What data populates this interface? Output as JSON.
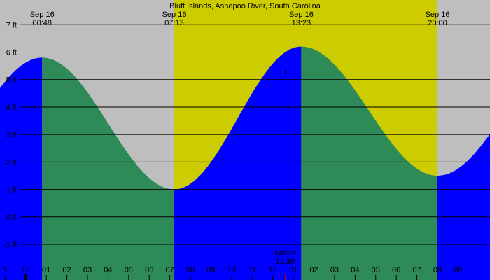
{
  "chart_data": {
    "type": "area",
    "title": "Bluff Islands, Ashepoo River, South Carolina",
    "xlabel": "",
    "ylabel": "",
    "y_unit": "ft",
    "ylim": [
      -2.3,
      7.9
    ],
    "y_ticks": [
      {
        "value": -1,
        "label": "-1 ft"
      },
      {
        "value": 0,
        "label": "0 ft"
      },
      {
        "value": 1,
        "label": "1 ft"
      },
      {
        "value": 2,
        "label": "2 ft"
      },
      {
        "value": 3,
        "label": "3 ft"
      },
      {
        "value": 4,
        "label": "4 ft"
      },
      {
        "value": 5,
        "label": "5 ft"
      },
      {
        "value": 6,
        "label": "6 ft"
      },
      {
        "value": 7,
        "label": "7 ft"
      }
    ],
    "x_unit": "hour of day (Sep 16)",
    "xlim": [
      -1.25,
      22.55
    ],
    "x_ticks": [
      {
        "hour": -1,
        "label": "1"
      },
      {
        "hour": 0,
        "label": "12"
      },
      {
        "hour": 1,
        "label": "01"
      },
      {
        "hour": 2,
        "label": "02"
      },
      {
        "hour": 3,
        "label": "03"
      },
      {
        "hour": 4,
        "label": "04"
      },
      {
        "hour": 5,
        "label": "05"
      },
      {
        "hour": 6,
        "label": "06"
      },
      {
        "hour": 7,
        "label": "07"
      },
      {
        "hour": 8,
        "label": "08"
      },
      {
        "hour": 9,
        "label": "09"
      },
      {
        "hour": 10,
        "label": "10"
      },
      {
        "hour": 11,
        "label": "11"
      },
      {
        "hour": 12,
        "label": "12"
      },
      {
        "hour": 13,
        "label": "01"
      },
      {
        "hour": 14,
        "label": "02"
      },
      {
        "hour": 15,
        "label": "03"
      },
      {
        "hour": 16,
        "label": "04"
      },
      {
        "hour": 17,
        "label": "05"
      },
      {
        "hour": 18,
        "label": "06"
      },
      {
        "hour": 19,
        "label": "07"
      },
      {
        "hour": 20,
        "label": "08"
      },
      {
        "hour": 21,
        "label": "09"
      }
    ],
    "daylight": {
      "start_hour": 7.2167,
      "end_hour": 20.0,
      "color": "#cccc00"
    },
    "night_color": "#bebebe",
    "colors": {
      "rising": "#0000ff",
      "falling": "#2e8b57",
      "grid": "#000000"
    },
    "tides": [
      {
        "type": "high",
        "time": "00:48",
        "hour": 0.8,
        "height_ft": 5.8
      },
      {
        "type": "low",
        "time": "07:13",
        "hour": 7.2167,
        "height_ft": 1.0
      },
      {
        "type": "high",
        "time": "13:23",
        "hour": 13.3833,
        "height_ft": 6.2
      },
      {
        "type": "low",
        "time": "20:00",
        "hour": 20.0,
        "height_ft": 1.5
      }
    ],
    "start_height_ft": 4.8,
    "end_height_ft": 2.3,
    "top_labels": [
      {
        "date": "Sep 16",
        "time": "00:48",
        "hour": 0.8
      },
      {
        "date": "Sep 16",
        "time": "07:13",
        "hour": 7.2167
      },
      {
        "date": "Sep 16",
        "time": "13:23",
        "hour": 13.3833
      },
      {
        "date": "Sep 16",
        "time": "20:00",
        "hour": 20.0
      }
    ],
    "moon": {
      "label": "Mnset",
      "time": "12:36",
      "hour": 12.6
    }
  }
}
